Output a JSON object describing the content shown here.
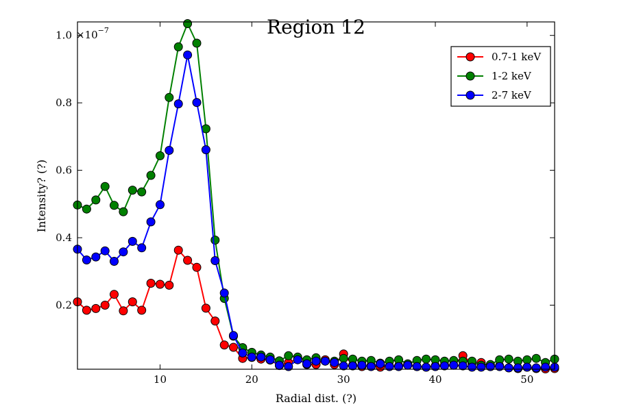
{
  "chart_data": {
    "type": "line",
    "title": "Region 12",
    "xlabel": "Radial dist. (?)",
    "ylabel": "Intensity? (?)",
    "y_multiplier_label": "×10",
    "y_multiplier_exponent": "−7",
    "xlim": [
      1,
      53
    ],
    "ylim": [
      0.01,
      1.04
    ],
    "x_ticks": [
      10,
      20,
      30,
      40,
      50
    ],
    "y_ticks": [
      0.2,
      0.4,
      0.6,
      0.8,
      1.0
    ],
    "x_tick_labels": [
      "10",
      "20",
      "30",
      "40",
      "50"
    ],
    "y_tick_labels": [
      "0.2",
      "0.4",
      "0.6",
      "0.8",
      "1.0"
    ],
    "grid": false,
    "legend_position": "top-right",
    "x": [
      1,
      2,
      3,
      4,
      5,
      6,
      7,
      8,
      9,
      10,
      11,
      12,
      13,
      14,
      15,
      16,
      17,
      18,
      19,
      20,
      21,
      22,
      23,
      24,
      25,
      26,
      27,
      28,
      29,
      30,
      31,
      32,
      33,
      34,
      35,
      36,
      37,
      38,
      39,
      40,
      41,
      42,
      43,
      44,
      45,
      46,
      47,
      48,
      49,
      50,
      51,
      52,
      53
    ],
    "series": [
      {
        "name": "0.7-1 keV",
        "color": "#ff0000",
        "values": [
          0.21,
          0.185,
          0.19,
          0.2,
          0.232,
          0.183,
          0.21,
          0.185,
          0.265,
          0.262,
          0.259,
          0.363,
          0.333,
          0.312,
          0.191,
          0.153,
          0.082,
          0.075,
          0.042,
          0.045,
          0.04,
          0.037,
          0.021,
          0.03,
          0.04,
          0.024,
          0.024,
          0.038,
          0.024,
          0.055,
          0.022,
          0.018,
          0.021,
          0.016,
          0.019,
          0.02,
          0.024,
          0.018,
          0.016,
          0.02,
          0.022,
          0.022,
          0.05,
          0.028,
          0.03,
          0.018,
          0.02,
          0.014,
          0.012,
          0.016,
          0.012,
          0.011,
          0.012
        ]
      },
      {
        "name": "1-2 keV",
        "color": "#008000",
        "values": [
          0.497,
          0.485,
          0.512,
          0.552,
          0.496,
          0.477,
          0.541,
          0.536,
          0.585,
          0.643,
          0.816,
          0.966,
          1.035,
          0.977,
          0.723,
          0.393,
          0.22,
          0.108,
          0.074,
          0.06,
          0.052,
          0.046,
          0.035,
          0.05,
          0.046,
          0.038,
          0.044,
          0.034,
          0.034,
          0.042,
          0.04,
          0.034,
          0.036,
          0.028,
          0.034,
          0.038,
          0.026,
          0.036,
          0.04,
          0.038,
          0.034,
          0.036,
          0.034,
          0.034,
          0.022,
          0.024,
          0.038,
          0.04,
          0.034,
          0.038,
          0.042,
          0.03,
          0.04
        ]
      },
      {
        "name": "2-7 keV",
        "color": "#0000ff",
        "values": [
          0.366,
          0.334,
          0.343,
          0.361,
          0.33,
          0.358,
          0.389,
          0.37,
          0.447,
          0.498,
          0.659,
          0.797,
          0.942,
          0.801,
          0.661,
          0.332,
          0.236,
          0.11,
          0.058,
          0.046,
          0.046,
          0.038,
          0.022,
          0.018,
          0.038,
          0.026,
          0.034,
          0.034,
          0.03,
          0.02,
          0.02,
          0.022,
          0.018,
          0.026,
          0.018,
          0.018,
          0.022,
          0.018,
          0.016,
          0.018,
          0.02,
          0.022,
          0.02,
          0.016,
          0.016,
          0.018,
          0.018,
          0.014,
          0.014,
          0.016,
          0.014,
          0.016,
          0.016
        ]
      }
    ]
  }
}
